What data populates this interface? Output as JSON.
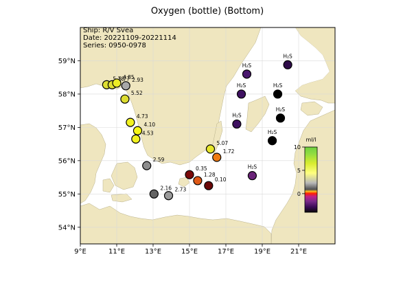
{
  "title": "Oxygen (bottle) (Bottom)",
  "info": {
    "ship": "Ship: R/V Svea",
    "date": "Date: 20221109-20221114",
    "series": "Series: 0950-0978"
  },
  "axes": {
    "x_ticks": [
      {
        "value": 9,
        "label": "9°E"
      },
      {
        "value": 11,
        "label": "11°E"
      },
      {
        "value": 13,
        "label": "13°E"
      },
      {
        "value": 15,
        "label": "15°E"
      },
      {
        "value": 17,
        "label": "17°E"
      },
      {
        "value": 19,
        "label": "19°E"
      },
      {
        "value": 21,
        "label": "21°E"
      }
    ],
    "y_ticks": [
      {
        "value": 59,
        "label": "59°N"
      },
      {
        "value": 58,
        "label": "58°N"
      },
      {
        "value": 57,
        "label": "57°N"
      },
      {
        "value": 56,
        "label": "56°N"
      },
      {
        "value": 55,
        "label": "55°N"
      },
      {
        "value": 54,
        "label": "54°N"
      }
    ],
    "lon_range": [
      9,
      23
    ],
    "lat_range": [
      53.5,
      60
    ]
  },
  "colorbar": {
    "unit": "ml/l",
    "ticks": [
      {
        "value": 10,
        "label": "10"
      },
      {
        "value": 5,
        "label": "5"
      },
      {
        "value": 0,
        "label": "0"
      }
    ],
    "range": [
      -4,
      10
    ]
  },
  "colors": {
    "land": "#efe6bf",
    "sea": "#ffffff",
    "grid": "#d9d9d9"
  },
  "stations": [
    {
      "lon": 10.45,
      "lat": 58.28,
      "value": 5.78,
      "label": "5.78",
      "color": "#dede33"
    },
    {
      "lon": 10.75,
      "lat": 58.28,
      "value": 5.77,
      "label": "5.77",
      "color": "#dede33"
    },
    {
      "lon": 11.0,
      "lat": 58.33,
      "value": 4.85,
      "label": "4.85",
      "color": "#ecec25"
    },
    {
      "lon": 11.5,
      "lat": 58.25,
      "value": 2.93,
      "label": "2.93",
      "color": "#a8a8a8"
    },
    {
      "lon": 11.45,
      "lat": 57.85,
      "value": 5.52,
      "label": "5.52",
      "color": "#dcdc30"
    },
    {
      "lon": 11.75,
      "lat": 57.15,
      "value": 4.73,
      "label": "4.73",
      "color": "#f2f220"
    },
    {
      "lon": 12.15,
      "lat": 56.9,
      "value": 4.1,
      "label": "4.10",
      "color": "#f6f616"
    },
    {
      "lon": 12.05,
      "lat": 56.65,
      "value": 4.53,
      "label": "4.53",
      "color": "#f2f220"
    },
    {
      "lon": 12.65,
      "lat": 55.85,
      "value": 2.59,
      "label": "2.59",
      "color": "#8c8c8c"
    },
    {
      "lon": 13.05,
      "lat": 55.0,
      "value": 2.16,
      "label": "2.16",
      "color": "#646464"
    },
    {
      "lon": 13.85,
      "lat": 54.95,
      "value": 2.73,
      "label": "2.73",
      "color": "#9a9a9a"
    },
    {
      "lon": 15.0,
      "lat": 55.58,
      "value": 0.35,
      "label": "0.35",
      "color": "#7a0a0a"
    },
    {
      "lon": 15.45,
      "lat": 55.4,
      "value": 1.28,
      "label": "1.28",
      "color": "#e05a18"
    },
    {
      "lon": 16.05,
      "lat": 55.25,
      "value": 0.1,
      "label": "0.10",
      "color": "#6a0808"
    },
    {
      "lon": 16.15,
      "lat": 56.35,
      "value": 5.07,
      "label": "5.07",
      "color": "#e6e62a"
    },
    {
      "lon": 16.5,
      "lat": 56.1,
      "value": 1.72,
      "label": "1.72",
      "color": "#ee7a12"
    },
    {
      "lon": 17.6,
      "lat": 57.1,
      "label": "H₂S",
      "color": "#3e1060"
    },
    {
      "lon": 17.85,
      "lat": 58.0,
      "label": "H₂S",
      "color": "#3e1060"
    },
    {
      "lon": 18.15,
      "lat": 58.6,
      "label": "H₂S",
      "color": "#4a186e"
    },
    {
      "lon": 18.45,
      "lat": 55.55,
      "label": "H₂S",
      "color": "#6a2378"
    },
    {
      "lon": 19.55,
      "lat": 56.6,
      "label": "H₂S",
      "color": "#000000"
    },
    {
      "lon": 19.85,
      "lat": 58.0,
      "label": "H₂S",
      "color": "#000000"
    },
    {
      "lon": 20.0,
      "lat": 57.28,
      "label": "H₂S",
      "color": "#000000"
    },
    {
      "lon": 20.4,
      "lat": 58.88,
      "label": "H₂S",
      "color": "#2e0b48"
    }
  ]
}
